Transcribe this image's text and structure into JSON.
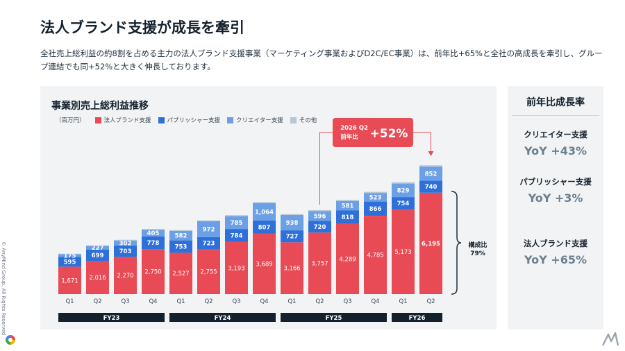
{
  "page": {
    "title": "法人ブランド支援が成長を牽引",
    "description": "全社売上総利益の約8割を占める主力の法人ブランド支援事業（マーケティング事業およびD2C/EC事業）は、前年比+65%と全社の高成長を牽引し、グループ連結でも同+52%と大きく伸長しております。",
    "copyright": "© AnyMind Group. All Rights Reserved"
  },
  "side": {
    "title": "前年比成長率",
    "items": [
      {
        "label": "クリエイター支援",
        "value": "YoY +43%"
      },
      {
        "label": "パブリッシャー支援",
        "value": "YoY +3%"
      },
      {
        "label": "法人ブランド支援",
        "value": "YoY +65%"
      }
    ]
  },
  "chart_data": {
    "type": "bar",
    "stacked": true,
    "title": "事業別売上総利益推移",
    "unit": "（百万円）",
    "categories": [
      "Q1",
      "Q2",
      "Q3",
      "Q4",
      "Q1",
      "Q2",
      "Q3",
      "Q4",
      "Q1",
      "Q2",
      "Q3",
      "Q4",
      "Q1",
      "Q2"
    ],
    "fiscal_years": [
      {
        "label": "FY23",
        "quarters": 4
      },
      {
        "label": "FY24",
        "quarters": 4
      },
      {
        "label": "FY25",
        "quarters": 4
      },
      {
        "label": "FY26",
        "quarters": 2
      }
    ],
    "series": [
      {
        "name": "法人ブランド支援",
        "color": "#e84b55",
        "values": [
          1671,
          2016,
          2270,
          2750,
          2527,
          2755,
          3193,
          3689,
          3166,
          3757,
          4289,
          4785,
          5173,
          6195
        ]
      },
      {
        "name": "パブリッシャー支援",
        "color": "#2f6fd9",
        "values": [
          595,
          699,
          703,
          778,
          753,
          723,
          784,
          807,
          727,
          720,
          818,
          866,
          754,
          740
        ]
      },
      {
        "name": "クリエイター支援",
        "color": "#6b9fe6",
        "values": [
          175,
          227,
          302,
          405,
          582,
          972,
          785,
          1064,
          938,
          596,
          581,
          523,
          829,
          852
        ]
      },
      {
        "name": "その他",
        "color": "#b8c7d6",
        "values": [
          30,
          35,
          40,
          45,
          50,
          55,
          60,
          65,
          55,
          60,
          65,
          70,
          75,
          80
        ]
      }
    ],
    "ylim": [
      0,
      8000
    ],
    "grid": false,
    "legend_position": "top-left",
    "callout": {
      "line1": "2026 Q2",
      "line2": "前年比",
      "value": "+52%"
    },
    "composition": {
      "label": "構成比",
      "value": "79%"
    }
  }
}
